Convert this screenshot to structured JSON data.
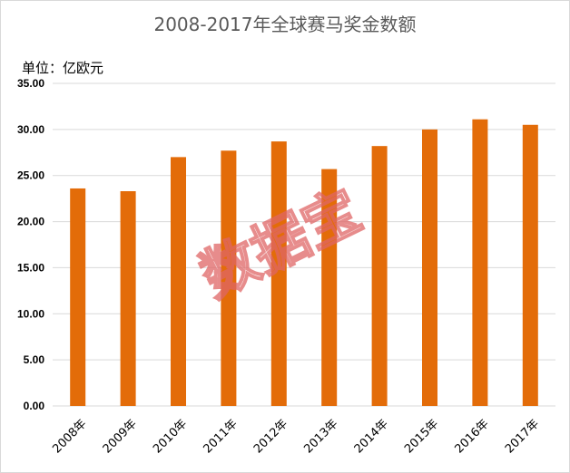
{
  "chart_data": {
    "type": "bar",
    "title": "2008-2017年全球赛马奖金数额",
    "unit_label": "单位：亿欧元",
    "categories": [
      "2008年",
      "2009年",
      "2010年",
      "2011年",
      "2012年",
      "2013年",
      "2014年",
      "2015年",
      "2016年",
      "2017年"
    ],
    "values": [
      23.6,
      23.3,
      27.0,
      27.7,
      28.7,
      25.7,
      28.2,
      30.0,
      31.1,
      30.5
    ],
    "ylim": [
      0,
      35
    ],
    "yticks": [
      "0.00",
      "5.00",
      "10.00",
      "15.00",
      "20.00",
      "25.00",
      "30.00",
      "35.00"
    ],
    "grid": true,
    "legend": "none",
    "bar_color": "#e36c09"
  },
  "watermark": "数据宝"
}
